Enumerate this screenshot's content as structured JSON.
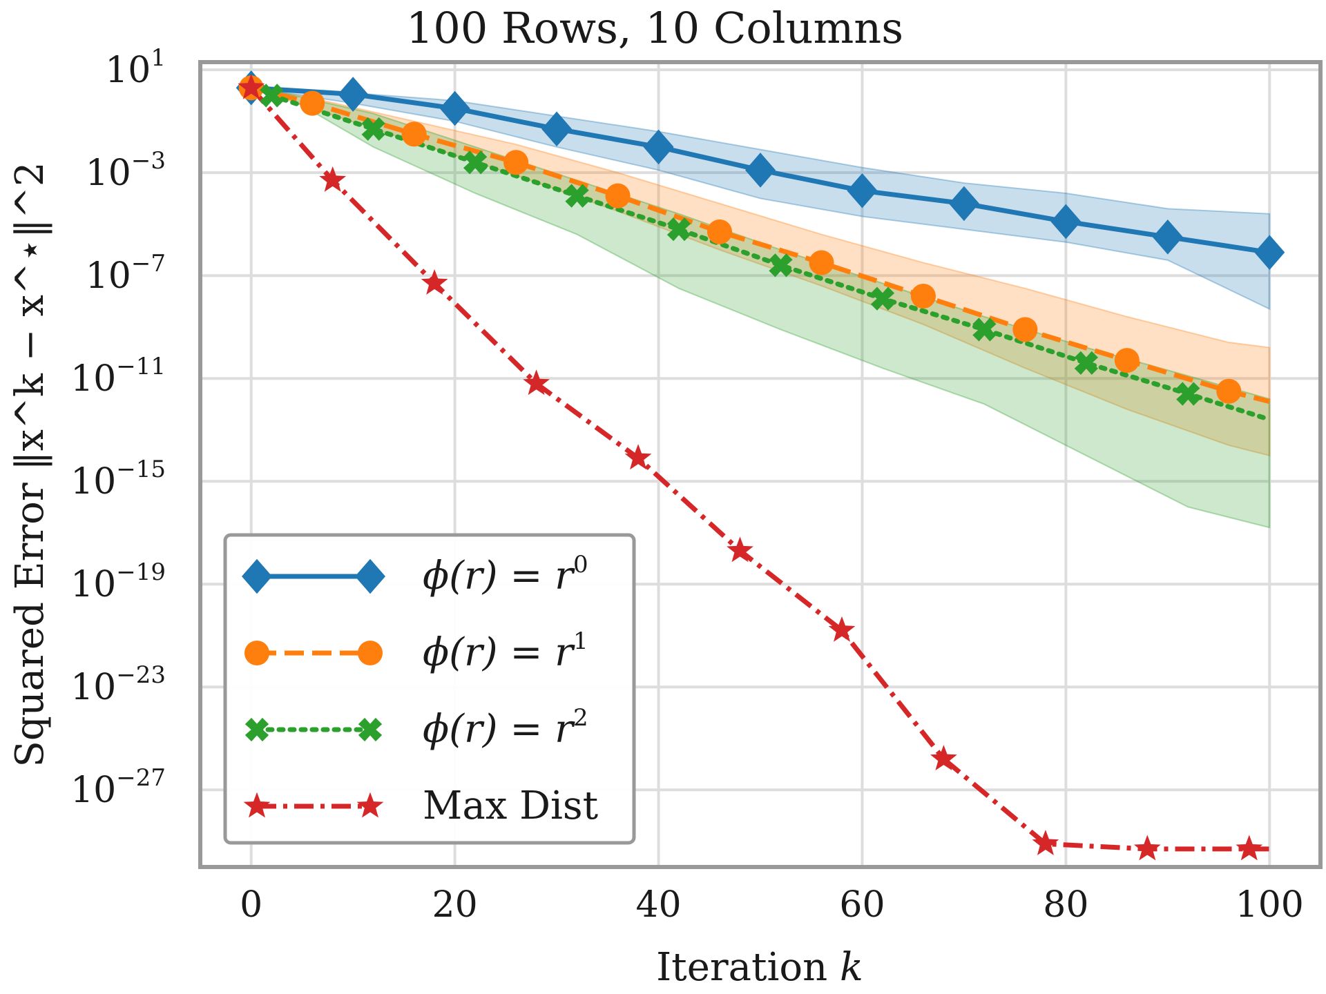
{
  "chart_data": {
    "type": "line",
    "title": "100 Rows, 10 Columns",
    "xlabel": "Iteration k",
    "ylabel": "Squared Error ‖x^k − x^⋆‖^2",
    "xlim": [
      -5,
      105
    ],
    "ylim_log10": [
      -30,
      1.3
    ],
    "yscale": "log",
    "grid": true,
    "legend_position": "lower-left",
    "x_ticks": [
      0,
      20,
      40,
      60,
      80,
      100
    ],
    "y_tick_exponents": [
      1,
      -3,
      -7,
      -11,
      -15,
      -19,
      -23,
      -27
    ],
    "y_tick_base": "10",
    "series": [
      {
        "name": "ϕ(r) = r^0",
        "legend_base": "ϕ(r) = r",
        "legend_exp": "0",
        "color": "#1f77b4",
        "linestyle": "solid",
        "marker": "diamond",
        "x": [
          0,
          10,
          20,
          30,
          40,
          50,
          60,
          70,
          80,
          90,
          100
        ],
        "log10_y": [
          0.3,
          0.05,
          -0.5,
          -1.3,
          -2.0,
          -2.9,
          -3.7,
          -4.2,
          -4.9,
          -5.5,
          -6.1
        ],
        "band_log10_upper": [
          0.3,
          0.1,
          -0.2,
          -0.8,
          -1.4,
          -2.1,
          -2.8,
          -3.4,
          -3.8,
          -4.4,
          -4.6
        ],
        "band_log10_lower": [
          0.3,
          -0.3,
          -1.0,
          -2.0,
          -2.9,
          -4.0,
          -4.7,
          -5.2,
          -5.7,
          -6.4,
          -8.3
        ]
      },
      {
        "name": "ϕ(r) = r^1",
        "legend_base": "ϕ(r) = r",
        "legend_exp": "1",
        "color": "#ff7f0e",
        "linestyle": "dashed",
        "marker": "circle",
        "x": [
          0,
          6,
          16,
          26,
          36,
          46,
          56,
          66,
          76,
          86,
          96,
          100
        ],
        "log10_y": [
          0.3,
          -0.3,
          -1.5,
          -2.6,
          -3.9,
          -5.3,
          -6.5,
          -7.8,
          -9.1,
          -10.3,
          -11.5,
          -11.9
        ],
        "band_log10_upper": [
          0.3,
          -0.1,
          -1.0,
          -1.9,
          -3.0,
          -4.2,
          -5.4,
          -6.5,
          -7.5,
          -8.6,
          -9.6,
          -9.8
        ],
        "band_log10_lower": [
          0.3,
          -0.5,
          -1.8,
          -3.1,
          -4.5,
          -6.0,
          -7.4,
          -8.9,
          -10.6,
          -12.2,
          -13.6,
          -14.0
        ]
      },
      {
        "name": "ϕ(r) = r^2",
        "legend_base": "ϕ(r) = r",
        "legend_exp": "2",
        "color": "#2ca02c",
        "linestyle": "dotted",
        "marker": "x",
        "x": [
          2,
          12,
          22,
          32,
          42,
          52,
          62,
          72,
          82,
          92,
          100
        ],
        "log10_y": [
          0.0,
          -1.3,
          -2.6,
          -3.9,
          -5.2,
          -6.6,
          -7.9,
          -9.1,
          -10.4,
          -11.6,
          -12.6
        ],
        "band_log10_upper": [
          0.2,
          -0.7,
          -2.0,
          -3.3,
          -4.6,
          -6.0,
          -7.3,
          -8.6,
          -9.8,
          -10.9,
          -11.8
        ],
        "band_log10_lower": [
          0.3,
          -2.0,
          -3.8,
          -5.4,
          -7.5,
          -9.1,
          -10.6,
          -12.0,
          -14.0,
          -16.0,
          -16.8
        ]
      },
      {
        "name": "Max Dist",
        "legend_base": "Max Dist",
        "legend_exp": "",
        "color": "#d62728",
        "linestyle": "dashdot",
        "marker": "star",
        "x": [
          0,
          8,
          18,
          28,
          38,
          48,
          58,
          68,
          78,
          88,
          98,
          100
        ],
        "log10_y": [
          0.3,
          -3.3,
          -7.3,
          -11.2,
          -14.1,
          -17.7,
          -20.8,
          -25.8,
          -29.1,
          -29.3,
          -29.3,
          -29.3
        ]
      }
    ]
  }
}
